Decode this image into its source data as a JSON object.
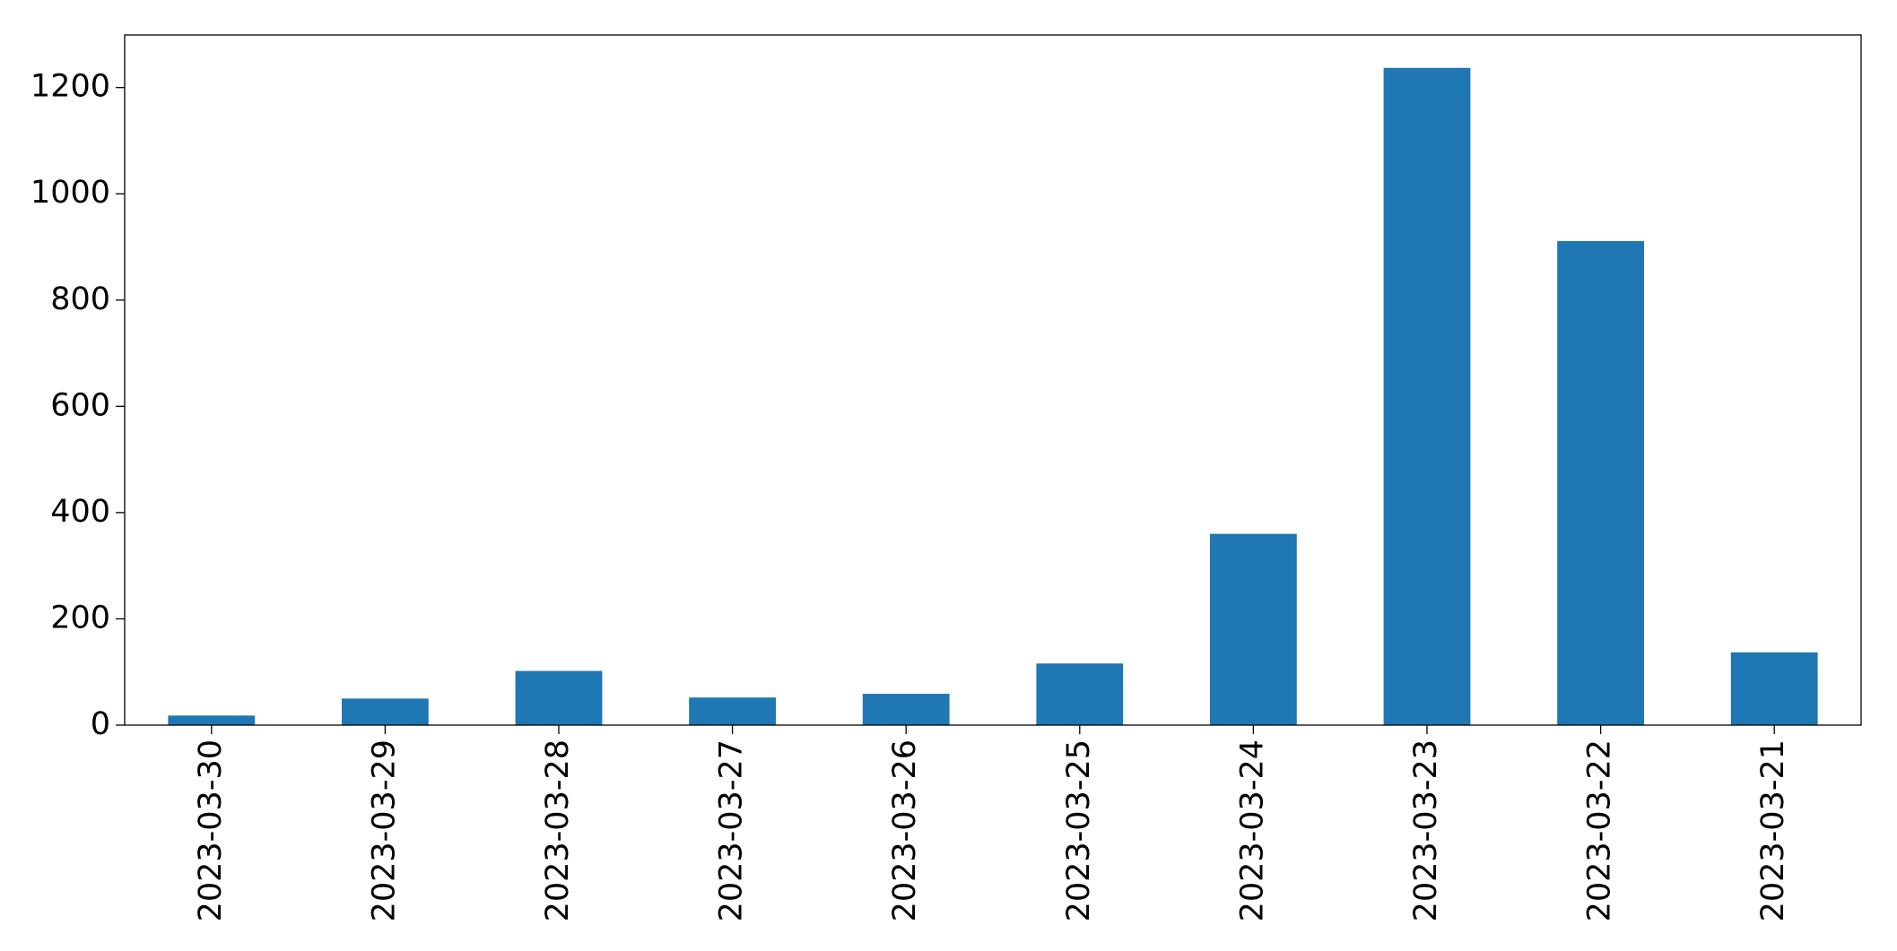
{
  "chart_data": {
    "type": "bar",
    "categories": [
      "2023-03-30",
      "2023-03-29",
      "2023-03-28",
      "2023-03-27",
      "2023-03-26",
      "2023-03-25",
      "2023-03-24",
      "2023-03-23",
      "2023-03-22",
      "2023-03-21"
    ],
    "values": [
      18,
      50,
      102,
      52,
      59,
      116,
      360,
      1237,
      911,
      137
    ],
    "color": "#1f77b4",
    "ylim": [
      0,
      1299
    ],
    "yticks": [
      0,
      200,
      400,
      600,
      800,
      1000,
      1200
    ],
    "grid": false
  }
}
